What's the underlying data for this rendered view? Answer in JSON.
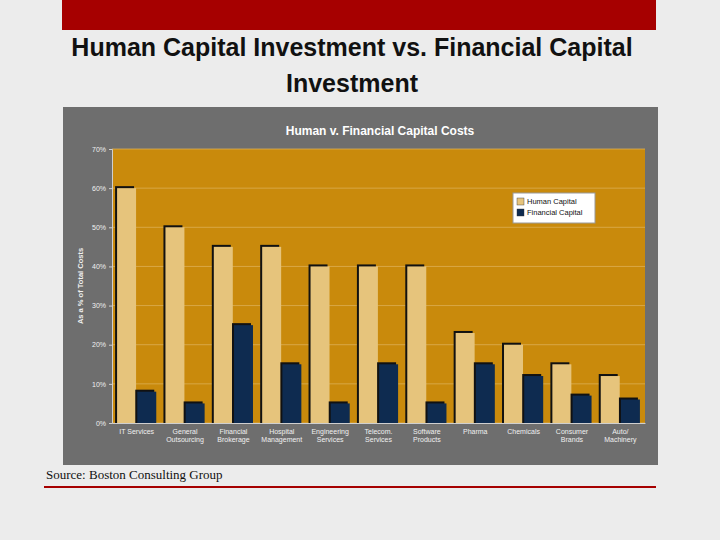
{
  "page": {
    "title": "Human Capital Investment vs. Financial Capital Investment",
    "source": "Source: Boston Consulting Group"
  },
  "chart_data": {
    "type": "bar",
    "title": "Human v. Financial Capital Costs",
    "y_label": "As a % of Total Costs",
    "categories": [
      "IT Services",
      "General\nOutsourcing",
      "Financial\nBrokerage",
      "Hospital\nManagement",
      "Engineering\nServices",
      "Telecom.\nServices",
      "Software\nProducts",
      "Pharma",
      "Chemicals",
      "Consumer\nBrands",
      "Auto/\nMachinery"
    ],
    "series": [
      {
        "name": "Human Capital",
        "color": "#e6c47c",
        "values": [
          60,
          50,
          45,
          45,
          40,
          40,
          40,
          23,
          20,
          15,
          12
        ]
      },
      {
        "name": "Financial Capital",
        "color": "#0e2b50",
        "values": [
          8,
          5,
          25,
          15,
          5,
          15,
          5,
          15,
          12,
          7,
          6
        ]
      }
    ],
    "ylim": [
      0,
      70
    ],
    "yticks": [
      {
        "value": 0,
        "label": "0%"
      },
      {
        "value": 10,
        "label": "10%"
      },
      {
        "value": 20,
        "label": "20%"
      },
      {
        "value": 30,
        "label": "30%"
      },
      {
        "value": 40,
        "label": "40%"
      },
      {
        "value": 50,
        "label": "50%"
      },
      {
        "value": 60,
        "label": "60%"
      },
      {
        "value": 70,
        "label": "70%"
      }
    ],
    "grid": true,
    "legend": "upper right"
  }
}
